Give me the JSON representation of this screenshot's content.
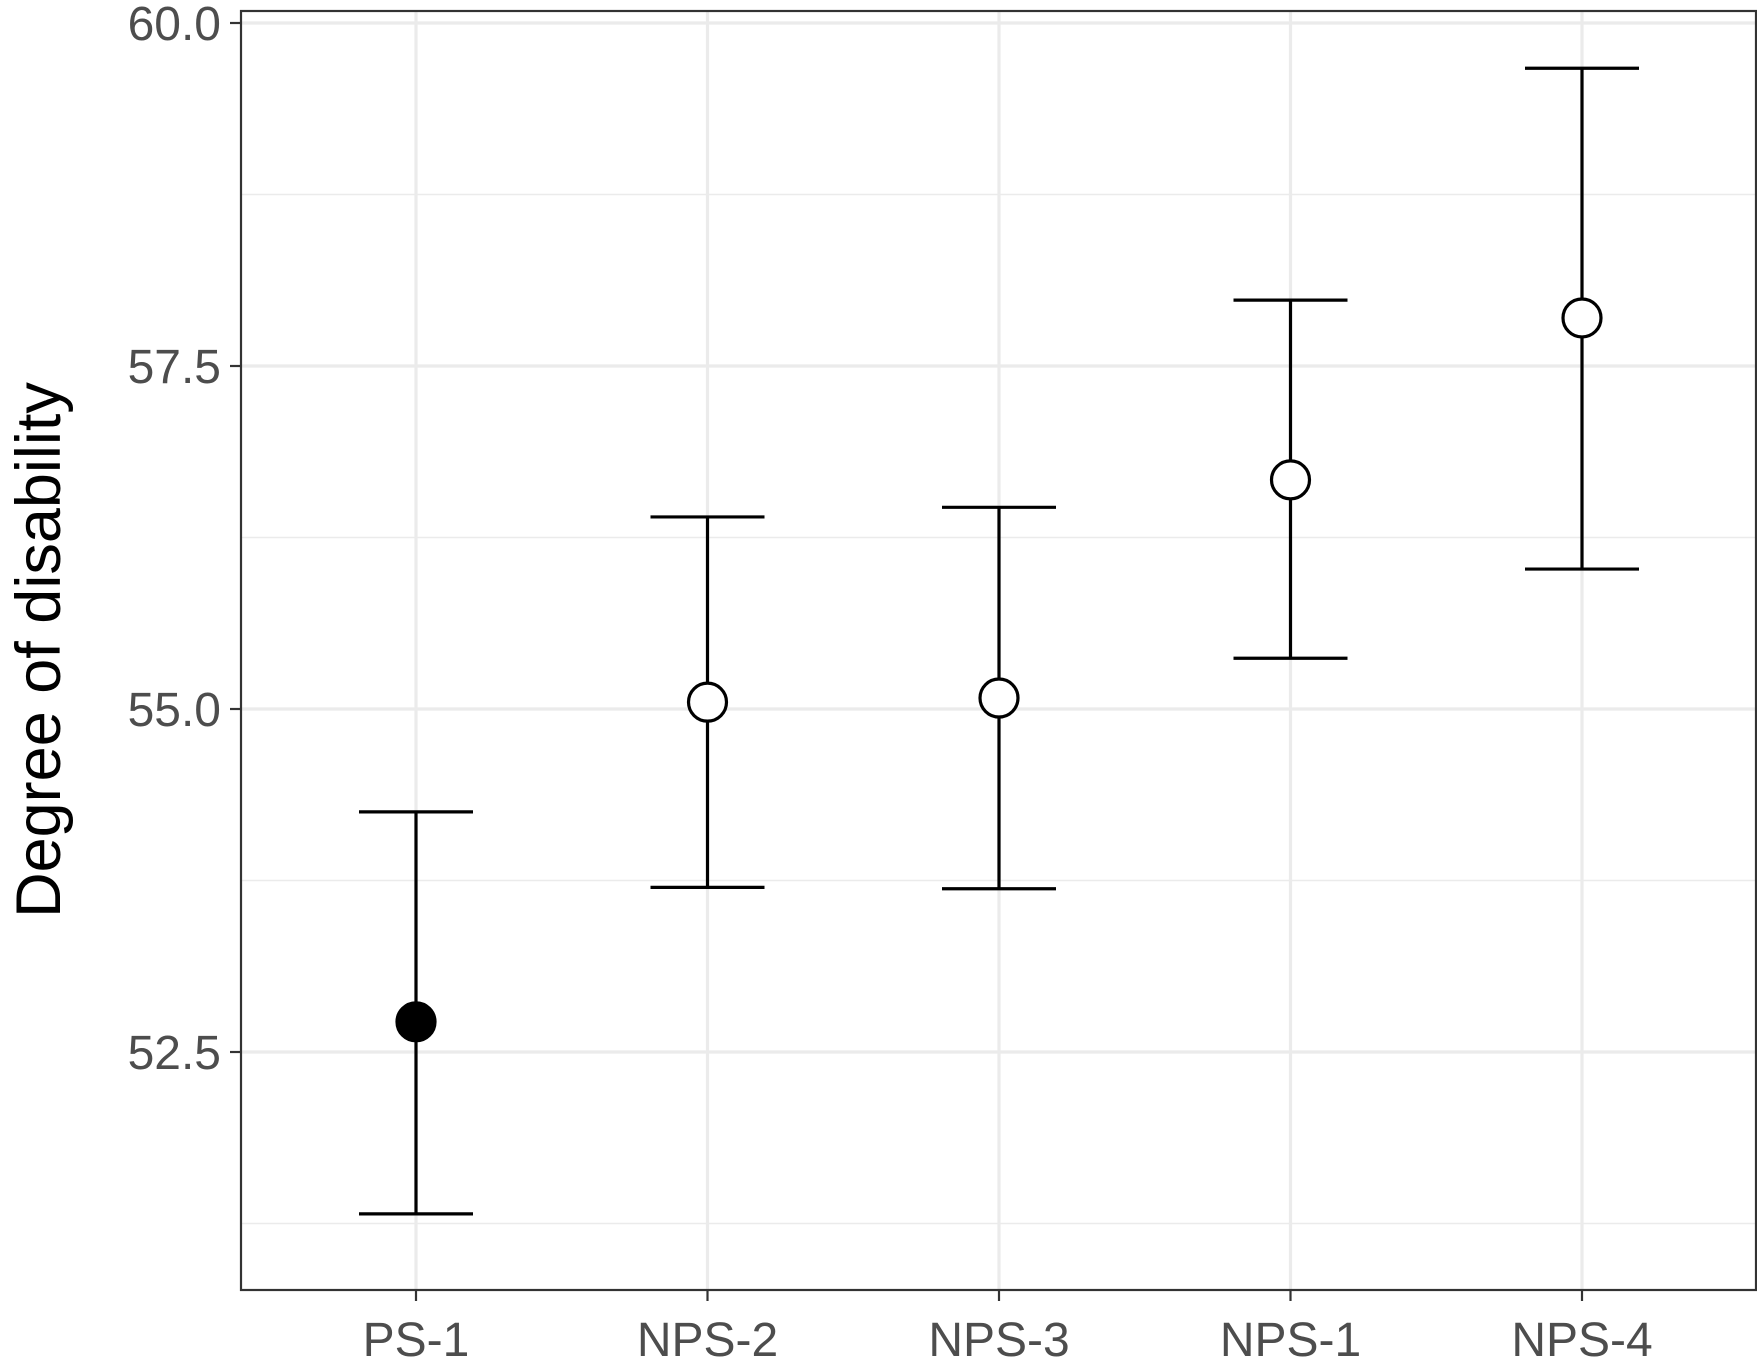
{
  "chart_data": {
    "type": "scatter",
    "title": "",
    "xlabel": "",
    "ylabel": "Degree of disability",
    "categories": [
      "PS-1",
      "NPS-2",
      "NPS-3",
      "NPS-1",
      "NPS-4"
    ],
    "points": [
      {
        "category": "PS-1",
        "mean": 52.72,
        "lower": 51.32,
        "upper": 54.25,
        "filled": true
      },
      {
        "category": "NPS-2",
        "mean": 55.05,
        "lower": 53.7,
        "upper": 56.4,
        "filled": false
      },
      {
        "category": "NPS-3",
        "mean": 55.08,
        "lower": 53.69,
        "upper": 56.47,
        "filled": false
      },
      {
        "category": "NPS-1",
        "mean": 56.67,
        "lower": 55.37,
        "upper": 57.98,
        "filled": false
      },
      {
        "category": "NPS-4",
        "mean": 57.85,
        "lower": 56.02,
        "upper": 59.67,
        "filled": false
      }
    ],
    "yticks": [
      52.5,
      55.0,
      57.5,
      60.0
    ],
    "ytick_labels": [
      "52.5",
      "55.0",
      "57.5",
      "60.0"
    ],
    "ylim": [
      51.0,
      60.0
    ],
    "grid": true,
    "legend": "none",
    "colors": {
      "marker": "#000000",
      "errorbar": "#000000",
      "grid": "#ebebeb",
      "panel_border": "#333333",
      "tick_text": "#4d4d4d"
    }
  }
}
